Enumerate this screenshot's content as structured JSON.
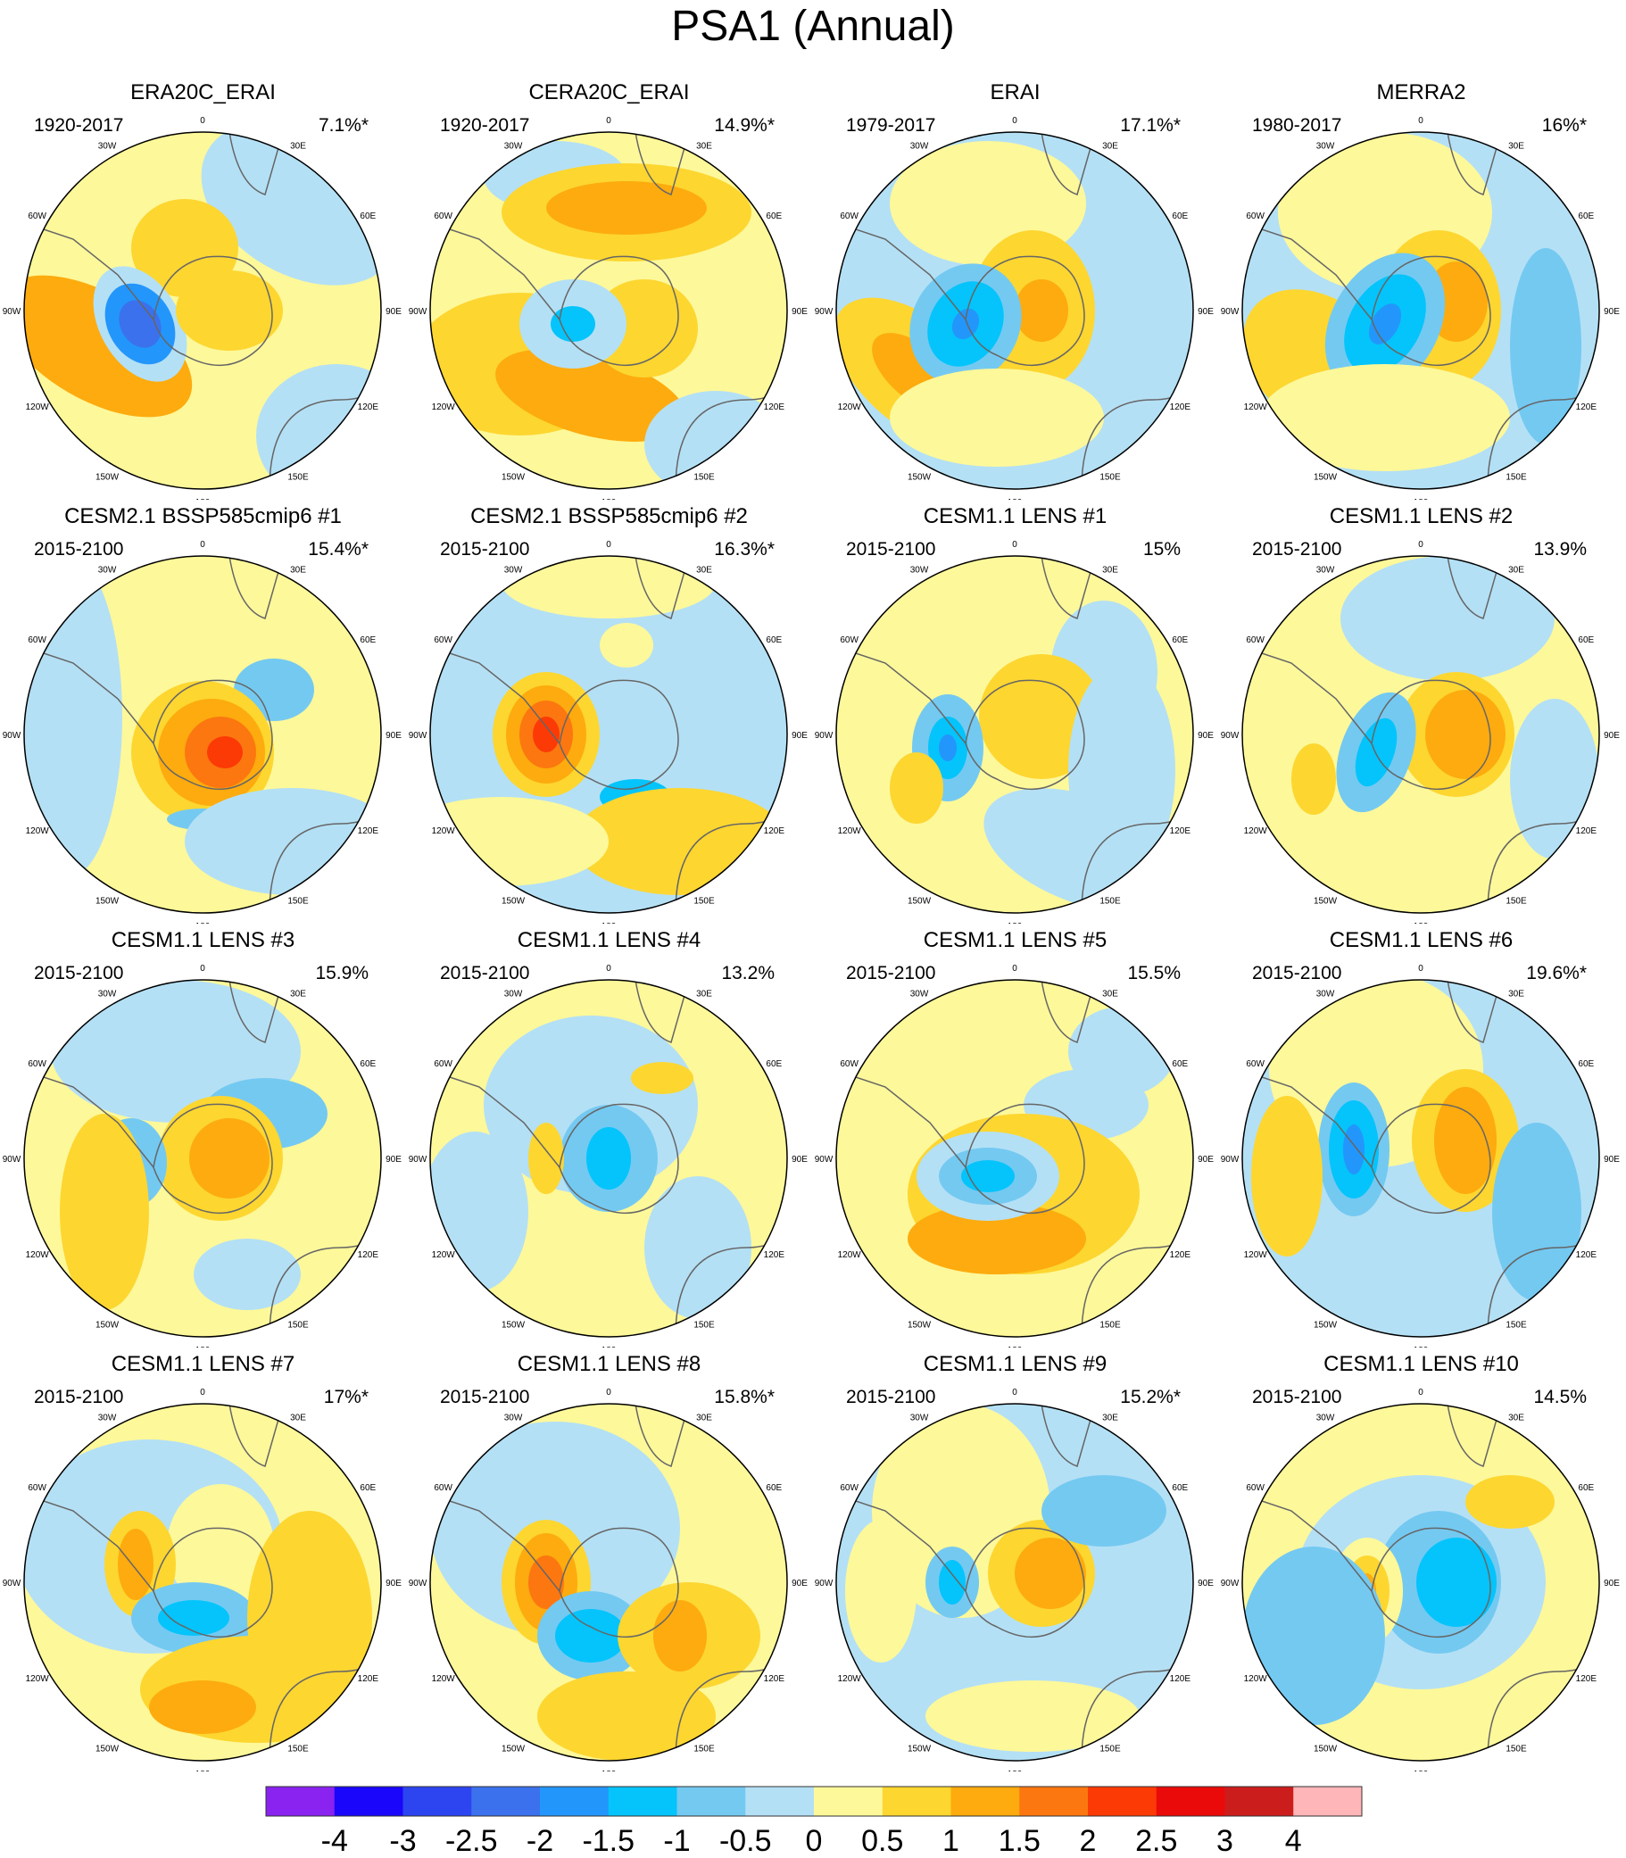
{
  "figure": {
    "title": "PSA1 (Annual)"
  },
  "chart_data": {
    "type": "heatmap",
    "title": "PSA1 (Annual)",
    "projection": "south polar stereographic",
    "lon_labels": [
      "0",
      "30E",
      "60E",
      "90E",
      "120E",
      "150E",
      "180",
      "150W",
      "120W",
      "90W",
      "60W",
      "30W"
    ],
    "colorbar": {
      "tick_labels": [
        "-4",
        "-3",
        "-2.5",
        "-2",
        "-1.5",
        "-1",
        "-0.5",
        "0",
        "0.5",
        "1",
        "1.5",
        "2",
        "2.5",
        "3",
        "4"
      ],
      "colors": [
        "#8a22f0",
        "#1a06fa",
        "#2c45f0",
        "#3b71ed",
        "#2396fb",
        "#04c4fb",
        "#74c9f1",
        "#b4e0f5",
        "#fdf89a",
        "#fdd630",
        "#fdab0e",
        "#fc7710",
        "#fc3a06",
        "#ea0a0a",
        "#cc1d1d",
        "#feb6b8"
      ]
    },
    "panels": [
      {
        "title": "ERA20C_ERAI",
        "period": "1920-2017",
        "variance": "7.1%*"
      },
      {
        "title": "CERA20C_ERAI",
        "period": "1920-2017",
        "variance": "14.9%*"
      },
      {
        "title": "ERAI",
        "period": "1979-2017",
        "variance": "17.1%*"
      },
      {
        "title": "MERRA2",
        "period": "1980-2017",
        "variance": "16%*"
      },
      {
        "title": "CESM2.1 BSSP585cmip6 #1",
        "period": "2015-2100",
        "variance": "15.4%*"
      },
      {
        "title": "CESM2.1 BSSP585cmip6 #2",
        "period": "2015-2100",
        "variance": "16.3%*"
      },
      {
        "title": "CESM1.1 LENS #1",
        "period": "2015-2100",
        "variance": "15%"
      },
      {
        "title": "CESM1.1 LENS #2",
        "period": "2015-2100",
        "variance": "13.9%"
      },
      {
        "title": "CESM1.1 LENS #3",
        "period": "2015-2100",
        "variance": "15.9%"
      },
      {
        "title": "CESM1.1 LENS #4",
        "period": "2015-2100",
        "variance": "13.2%"
      },
      {
        "title": "CESM1.1 LENS #5",
        "period": "2015-2100",
        "variance": "15.5%"
      },
      {
        "title": "CESM1.1 LENS #6",
        "period": "2015-2100",
        "variance": "19.6%*"
      },
      {
        "title": "CESM1.1 LENS #7",
        "period": "2015-2100",
        "variance": "17%*"
      },
      {
        "title": "CESM1.1 LENS #8",
        "period": "2015-2100",
        "variance": "15.8%*"
      },
      {
        "title": "CESM1.1 LENS #9",
        "period": "2015-2100",
        "variance": "15.2%*"
      },
      {
        "title": "CESM1.1 LENS #10",
        "period": "2015-2100",
        "variance": "14.5%"
      }
    ]
  }
}
